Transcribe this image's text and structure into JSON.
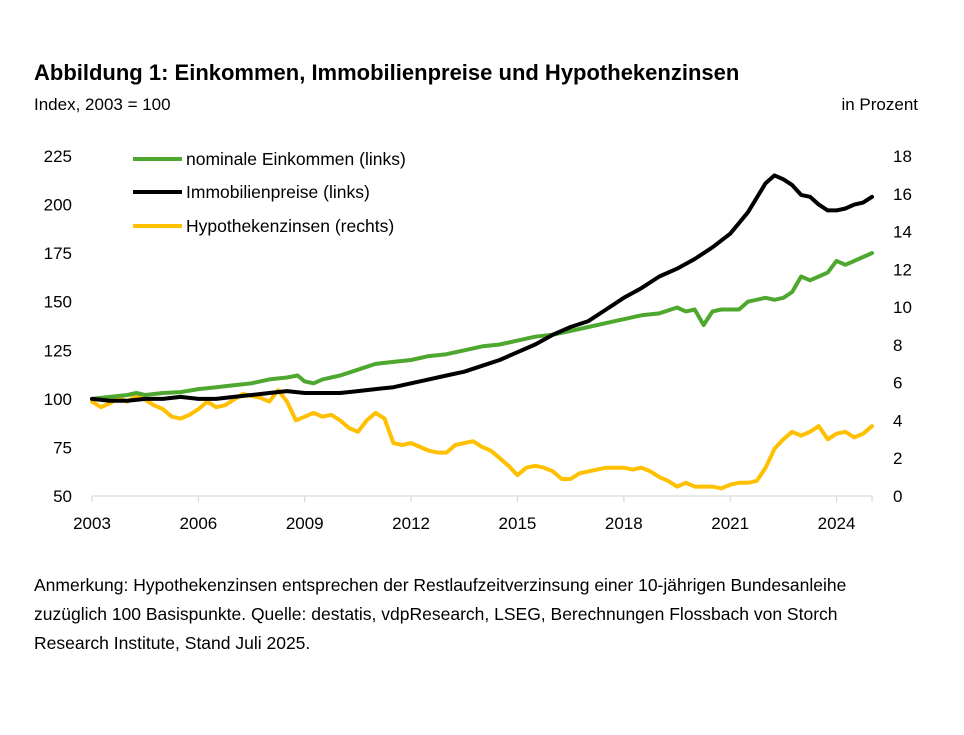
{
  "header": {
    "title": "Abbildung 1: Einkommen, Immobilienpreise und Hypothekenzinsen",
    "subtitle_left": "Index, 2003 = 100",
    "subtitle_right": "in Prozent"
  },
  "note": "Anmerkung: Hypothekenzinsen entsprechen der Restlaufzeitverzinsung einer 10-jährigen Bundesanleihe zuzüglich 100 Basispunkte. Quelle: destatis, vdpResearch, LSEG, Berechnungen Flossbach von Storch Research Institute, Stand Juli 2025.",
  "chart_data": {
    "type": "line",
    "title": "Abbildung 1: Einkommen, Immobilienpreise und Hypothekenzinsen",
    "xlim": [
      2003,
      2025
    ],
    "x_ticks": [
      "2003",
      "2006",
      "2009",
      "2012",
      "2015",
      "2018",
      "2021",
      "2024"
    ],
    "y_left": {
      "label": "Index, 2003 = 100",
      "lim": [
        50,
        225
      ],
      "ticks": [
        "50",
        "75",
        "100",
        "125",
        "150",
        "175",
        "200",
        "225"
      ]
    },
    "y_right": {
      "label": "in Prozent",
      "lim": [
        0,
        18
      ],
      "ticks": [
        "0",
        "2",
        "4",
        "6",
        "8",
        "10",
        "12",
        "14",
        "16",
        "18"
      ]
    },
    "legend_position": "top-left",
    "series": [
      {
        "name": "nominale Einkommen (links)",
        "axis": "left",
        "color": "#4ea72e",
        "points": [
          [
            2003,
            100
          ],
          [
            2003.5,
            101
          ],
          [
            2004,
            102
          ],
          [
            2004.25,
            103
          ],
          [
            2004.5,
            102
          ],
          [
            2005,
            103
          ],
          [
            2005.5,
            103.5
          ],
          [
            2006,
            105
          ],
          [
            2006.5,
            106
          ],
          [
            2007,
            107
          ],
          [
            2007.5,
            108
          ],
          [
            2008,
            110
          ],
          [
            2008.5,
            111
          ],
          [
            2008.8,
            112
          ],
          [
            2009,
            109
          ],
          [
            2009.25,
            108
          ],
          [
            2009.5,
            110
          ],
          [
            2010,
            112
          ],
          [
            2010.5,
            115
          ],
          [
            2011,
            118
          ],
          [
            2011.5,
            119
          ],
          [
            2012,
            120
          ],
          [
            2012.5,
            122
          ],
          [
            2013,
            123
          ],
          [
            2013.5,
            125
          ],
          [
            2014,
            127
          ],
          [
            2014.5,
            128
          ],
          [
            2015,
            130
          ],
          [
            2015.5,
            132
          ],
          [
            2016,
            133
          ],
          [
            2016.5,
            135
          ],
          [
            2017,
            137
          ],
          [
            2017.5,
            139
          ],
          [
            2018,
            141
          ],
          [
            2018.5,
            143
          ],
          [
            2019,
            144
          ],
          [
            2019.5,
            147
          ],
          [
            2019.75,
            145
          ],
          [
            2020,
            146
          ],
          [
            2020.25,
            138
          ],
          [
            2020.5,
            145
          ],
          [
            2020.75,
            146
          ],
          [
            2021,
            146
          ],
          [
            2021.25,
            146
          ],
          [
            2021.5,
            150
          ],
          [
            2022,
            152
          ],
          [
            2022.25,
            151
          ],
          [
            2022.5,
            152
          ],
          [
            2022.75,
            155
          ],
          [
            2023,
            163
          ],
          [
            2023.25,
            161
          ],
          [
            2023.5,
            163
          ],
          [
            2023.75,
            165
          ],
          [
            2024,
            171
          ],
          [
            2024.25,
            169
          ],
          [
            2024.5,
            171
          ],
          [
            2024.75,
            173
          ],
          [
            2025,
            175
          ]
        ]
      },
      {
        "name": "Immobilienpreise (links)",
        "axis": "left",
        "color": "#000000",
        "points": [
          [
            2003,
            100
          ],
          [
            2003.5,
            99
          ],
          [
            2004,
            99
          ],
          [
            2004.5,
            100
          ],
          [
            2005,
            100
          ],
          [
            2005.5,
            101
          ],
          [
            2006,
            100
          ],
          [
            2006.5,
            100
          ],
          [
            2007,
            101
          ],
          [
            2007.5,
            102
          ],
          [
            2008,
            103
          ],
          [
            2008.5,
            104
          ],
          [
            2009,
            103
          ],
          [
            2009.5,
            103
          ],
          [
            2010,
            103
          ],
          [
            2010.5,
            104
          ],
          [
            2011,
            105
          ],
          [
            2011.5,
            106
          ],
          [
            2012,
            108
          ],
          [
            2012.5,
            110
          ],
          [
            2013,
            112
          ],
          [
            2013.5,
            114
          ],
          [
            2014,
            117
          ],
          [
            2014.5,
            120
          ],
          [
            2015,
            124
          ],
          [
            2015.5,
            128
          ],
          [
            2016,
            133
          ],
          [
            2016.5,
            137
          ],
          [
            2017,
            140
          ],
          [
            2017.5,
            146
          ],
          [
            2018,
            152
          ],
          [
            2018.5,
            157
          ],
          [
            2019,
            163
          ],
          [
            2019.5,
            167
          ],
          [
            2020,
            172
          ],
          [
            2020.5,
            178
          ],
          [
            2021,
            185
          ],
          [
            2021.5,
            196
          ],
          [
            2022,
            211
          ],
          [
            2022.25,
            215
          ],
          [
            2022.5,
            213
          ],
          [
            2022.75,
            210
          ],
          [
            2023,
            205
          ],
          [
            2023.25,
            204
          ],
          [
            2023.5,
            200
          ],
          [
            2023.75,
            197
          ],
          [
            2024,
            197
          ],
          [
            2024.25,
            198
          ],
          [
            2024.5,
            200
          ],
          [
            2024.75,
            201
          ],
          [
            2025,
            204
          ]
        ]
      },
      {
        "name": "Hypothekenzinsen (rechts)",
        "axis": "right",
        "color": "#ffc000",
        "points": [
          [
            2003,
            5.0
          ],
          [
            2003.25,
            4.7
          ],
          [
            2003.5,
            4.9
          ],
          [
            2003.75,
            5.2
          ],
          [
            2004,
            5.0
          ],
          [
            2004.25,
            5.3
          ],
          [
            2004.5,
            5.1
          ],
          [
            2004.75,
            4.8
          ],
          [
            2005,
            4.6
          ],
          [
            2005.25,
            4.2
          ],
          [
            2005.5,
            4.1
          ],
          [
            2005.75,
            4.3
          ],
          [
            2006,
            4.6
          ],
          [
            2006.25,
            5.0
          ],
          [
            2006.5,
            4.7
          ],
          [
            2006.75,
            4.8
          ],
          [
            2007,
            5.1
          ],
          [
            2007.25,
            5.4
          ],
          [
            2007.5,
            5.3
          ],
          [
            2007.75,
            5.2
          ],
          [
            2008,
            5.0
          ],
          [
            2008.25,
            5.6
          ],
          [
            2008.5,
            5.0
          ],
          [
            2008.75,
            4.0
          ],
          [
            2009,
            4.2
          ],
          [
            2009.25,
            4.4
          ],
          [
            2009.5,
            4.2
          ],
          [
            2009.75,
            4.3
          ],
          [
            2010,
            4.0
          ],
          [
            2010.25,
            3.6
          ],
          [
            2010.5,
            3.4
          ],
          [
            2010.75,
            4.0
          ],
          [
            2011,
            4.4
          ],
          [
            2011.25,
            4.1
          ],
          [
            2011.5,
            2.8
          ],
          [
            2011.75,
            2.7
          ],
          [
            2012,
            2.8
          ],
          [
            2012.25,
            2.6
          ],
          [
            2012.5,
            2.4
          ],
          [
            2012.75,
            2.3
          ],
          [
            2013,
            2.3
          ],
          [
            2013.25,
            2.7
          ],
          [
            2013.5,
            2.8
          ],
          [
            2013.75,
            2.9
          ],
          [
            2014,
            2.6
          ],
          [
            2014.25,
            2.4
          ],
          [
            2014.5,
            2.0
          ],
          [
            2014.75,
            1.6
          ],
          [
            2015,
            1.1
          ],
          [
            2015.25,
            1.5
          ],
          [
            2015.5,
            1.6
          ],
          [
            2015.75,
            1.5
          ],
          [
            2016,
            1.3
          ],
          [
            2016.25,
            0.9
          ],
          [
            2016.5,
            0.9
          ],
          [
            2016.75,
            1.2
          ],
          [
            2017,
            1.3
          ],
          [
            2017.25,
            1.4
          ],
          [
            2017.5,
            1.5
          ],
          [
            2017.75,
            1.5
          ],
          [
            2018,
            1.5
          ],
          [
            2018.25,
            1.4
          ],
          [
            2018.5,
            1.5
          ],
          [
            2018.75,
            1.3
          ],
          [
            2019,
            1.0
          ],
          [
            2019.25,
            0.8
          ],
          [
            2019.5,
            0.5
          ],
          [
            2019.75,
            0.7
          ],
          [
            2020,
            0.5
          ],
          [
            2020.25,
            0.5
          ],
          [
            2020.5,
            0.5
          ],
          [
            2020.75,
            0.4
          ],
          [
            2021,
            0.6
          ],
          [
            2021.25,
            0.7
          ],
          [
            2021.5,
            0.7
          ],
          [
            2021.75,
            0.8
          ],
          [
            2022,
            1.5
          ],
          [
            2022.25,
            2.5
          ],
          [
            2022.5,
            3.0
          ],
          [
            2022.75,
            3.4
          ],
          [
            2023,
            3.2
          ],
          [
            2023.25,
            3.4
          ],
          [
            2023.5,
            3.7
          ],
          [
            2023.75,
            3.0
          ],
          [
            2024,
            3.3
          ],
          [
            2024.25,
            3.4
          ],
          [
            2024.5,
            3.1
          ],
          [
            2024.75,
            3.3
          ],
          [
            2025,
            3.7
          ]
        ]
      }
    ]
  }
}
